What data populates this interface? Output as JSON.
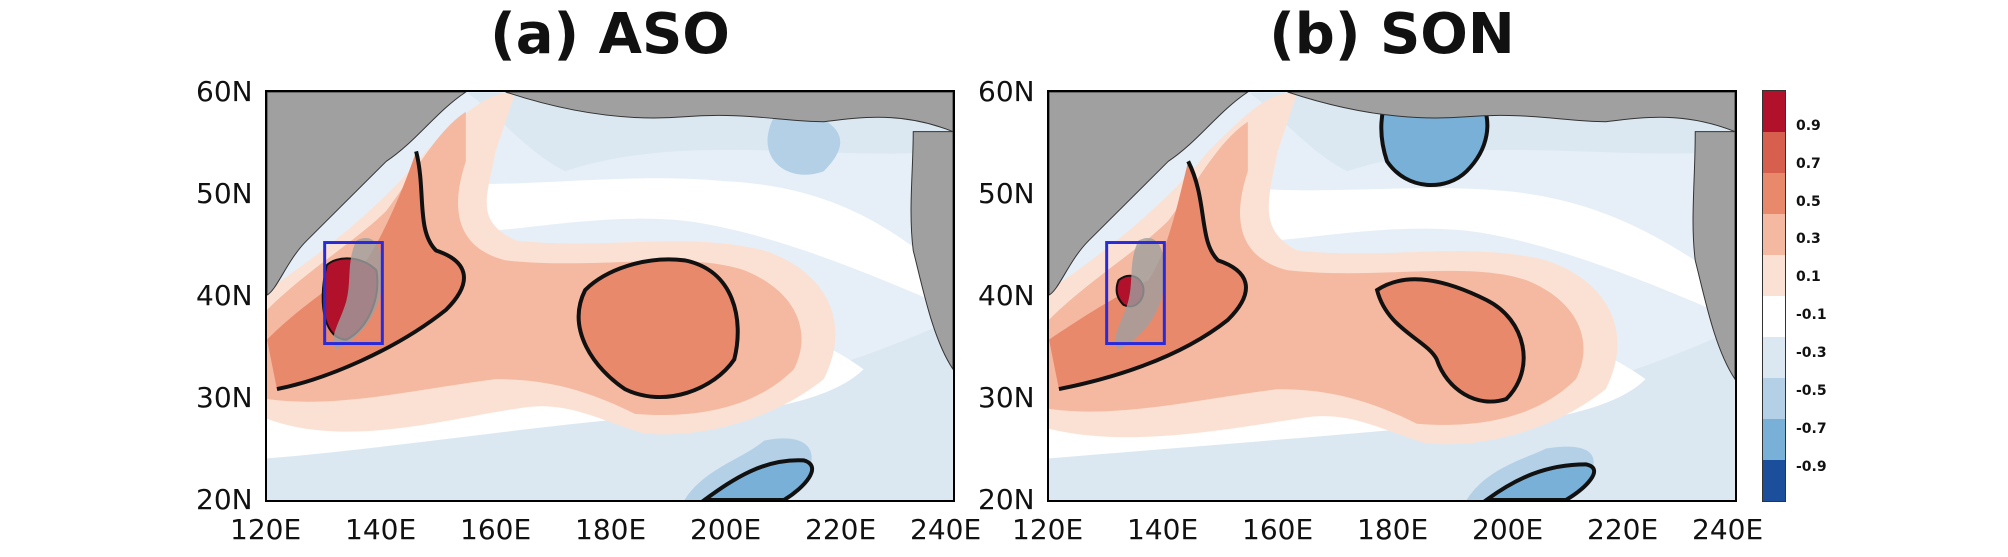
{
  "panels": [
    {
      "title": "(a) ASO"
    },
    {
      "title": "(b) SON"
    }
  ],
  "axes": {
    "y_ticks": [
      "60N",
      "50N",
      "40N",
      "30N",
      "20N"
    ],
    "x_ticks": [
      "120E",
      "140E",
      "160E",
      "180E",
      "200E",
      "220E",
      "240E"
    ]
  },
  "colorbar": {
    "labels": [
      "0.9",
      "0.7",
      "0.5",
      "0.3",
      "0.1",
      "-0.1",
      "-0.3",
      "-0.5",
      "-0.7",
      "-0.9"
    ],
    "colors": [
      "#b2112b",
      "#d6604d",
      "#e8896c",
      "#f4b9a0",
      "#fbe1d3",
      "#ffffff",
      "#dbe8f2",
      "#b3d0e6",
      "#78b0d7",
      "#3f80c0",
      "#1b4f9c"
    ]
  },
  "colors": {
    "land": "#a0a0a0",
    "box": "#2a2ad9",
    "contour": "#111111"
  }
}
